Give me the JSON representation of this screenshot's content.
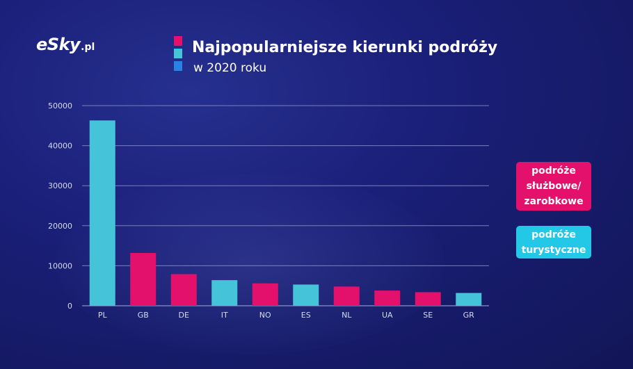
{
  "logo": {
    "main": "eSky",
    "suffix": ".pl"
  },
  "title": "Najpopularniejsze kierunki podróży",
  "subtitle": "w 2020 roku",
  "colors": {
    "business": "#e4116c",
    "tourist": "#45c3d8",
    "marker_blue": "#2a82e4",
    "legend_tourist_bg": "#22c8e6",
    "gridline": "#8a90c8",
    "axis_text": "#d8dbf0"
  },
  "legend": {
    "business_label": "podróże służbowe/ zarobkowe",
    "tourist_label": "podróże turystyczne"
  },
  "chart_data": {
    "type": "bar",
    "title": "Najpopularniejsze kierunki podróży",
    "subtitle": "w 2020 roku",
    "xlabel": "",
    "ylabel": "",
    "ylim": [
      0,
      50000
    ],
    "yticks": [
      0,
      10000,
      20000,
      30000,
      40000,
      50000
    ],
    "grid": true,
    "legend_position": "right",
    "categories": [
      "PL",
      "GB",
      "DE",
      "IT",
      "NO",
      "ES",
      "NL",
      "UA",
      "SE",
      "GR"
    ],
    "values": [
      46300,
      13200,
      7900,
      6400,
      5600,
      5300,
      4800,
      3800,
      3400,
      3200
    ],
    "bar_type": [
      "tourist",
      "business",
      "business",
      "tourist",
      "business",
      "tourist",
      "business",
      "business",
      "business",
      "tourist"
    ]
  }
}
